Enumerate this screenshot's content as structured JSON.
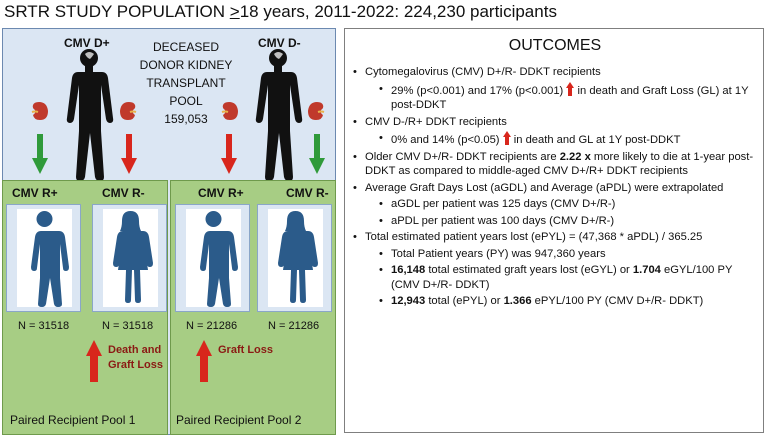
{
  "title": {
    "prefix": "SRTR STUDY POPULATION ",
    "ge_symbol": ">",
    "suffix": "18 years, 2011-2022: 224,230 participants"
  },
  "left": {
    "donor_pos_label": "CMV D+",
    "donor_neg_label": "CMV D-",
    "pool_lines": [
      "DECEASED",
      "DONOR KIDNEY",
      "TRANSPLANT",
      "POOL",
      "159,053"
    ],
    "pool1": {
      "recipient_pos_label": "CMV R+",
      "recipient_neg_label": "CMV R-",
      "n_pos": "N = 31518",
      "n_neg": "N = 31518",
      "outcome_lines": [
        "Death and",
        "Graft Loss"
      ],
      "footer": "Paired Recipient Pool 1"
    },
    "pool2": {
      "recipient_pos_label": "CMV R+",
      "recipient_neg_label": "CMV R-",
      "n_pos": "N = 21286",
      "n_neg": "N = 21286",
      "outcome_lines": [
        "Graft Loss"
      ],
      "footer": "Paired Recipient Pool 2"
    },
    "colors": {
      "panel_bg": "#dbe6f3",
      "pool_bg": "#a7cd84",
      "green_arrow": "#2f9a3a",
      "red_arrow": "#d8261c",
      "person": "#2b5b8a",
      "kidney": "#c0392b"
    }
  },
  "outcomes": {
    "title": "OUTCOMES",
    "b1": "Cytomegalovirus (CMV) D+/R- DDKT recipients",
    "b1_1a": "29% (p<0.001) and 17% (p<0.001) ",
    "b1_1b": " in death and Graft Loss (GL) at 1Y post-DDKT",
    "b2": "CMV D-/R+ DDKT recipients",
    "b2_1a": "0% and 14% (p<0.05) ",
    "b2_1b": " in death and GL at 1Y post-DDKT",
    "b3a": "Older CMV D+/R- DDKT recipients are ",
    "b3bold": "2.22 x",
    "b3b": " more likely to die at 1-year post-DDKT as compared to middle-aged CMV D+/R+ DDKT recipients",
    "b4": "Average Graft Days Lost (aGDL) and Average (aPDL) were extrapolated",
    "b4_1": "aGDL per patient was 125 days (CMV D+/R-)",
    "b4_2": "aPDL per patient was 100 days (CMV D+/R-)",
    "b5": "Total estimated patient years lost (ePYL) = (47,368 * aPDL) / 365.25",
    "b5_1": "Total Patient years (PY) was 947,360 years",
    "b5_2bold": "16,148",
    "b5_2a": " total estimated graft years lost (eGYL) or ",
    "b5_2bold2": "1.704",
    "b5_2b": " eGYL/100 PY (CMV D+/R- DDKT)",
    "b5_3bold": "12,943",
    "b5_3a": " total (ePYL) or ",
    "b5_3bold2": "1.366",
    "b5_3b": " ePYL/100 PY (CMV D+/R- DDKT)",
    "up_arrow_icon": "up-arrow-icon",
    "up_arrow_color": "#d8261c"
  }
}
